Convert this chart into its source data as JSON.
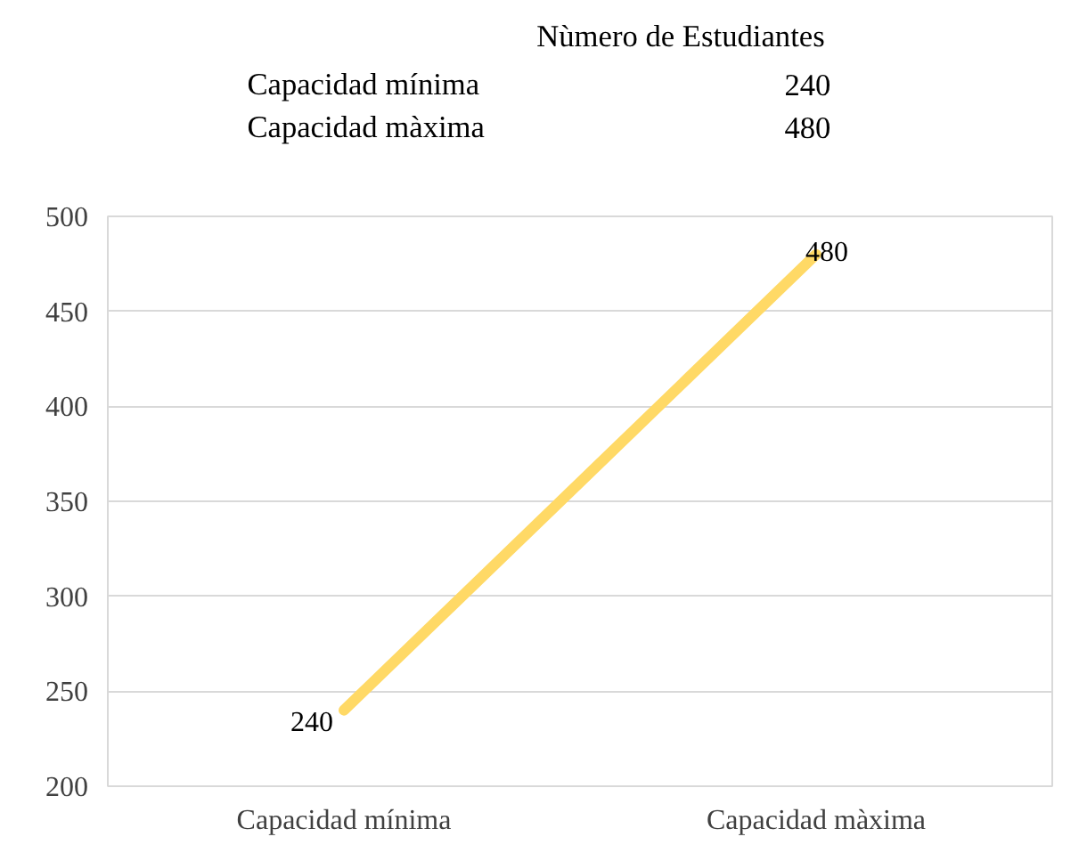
{
  "chart_data": [
    {
      "type": "other",
      "title": "Nùmero de Estudiantes",
      "categories": [
        "Capacidad mínima",
        "Capacidad màxima"
      ],
      "values": [
        240,
        480
      ],
      "data_labels": true
    },
    {
      "type": "line",
      "categories": [
        "Capacidad mínima",
        "Capacidad màxima"
      ],
      "series": [
        {
          "color": "#ffd966",
          "values": [
            240,
            480
          ]
        }
      ],
      "ylim": [
        200,
        500
      ],
      "yticks": [
        200,
        250,
        300,
        350,
        400,
        450,
        500
      ],
      "grid": "y",
      "data_labels": true,
      "marker": "none",
      "line_style": "solid"
    }
  ]
}
